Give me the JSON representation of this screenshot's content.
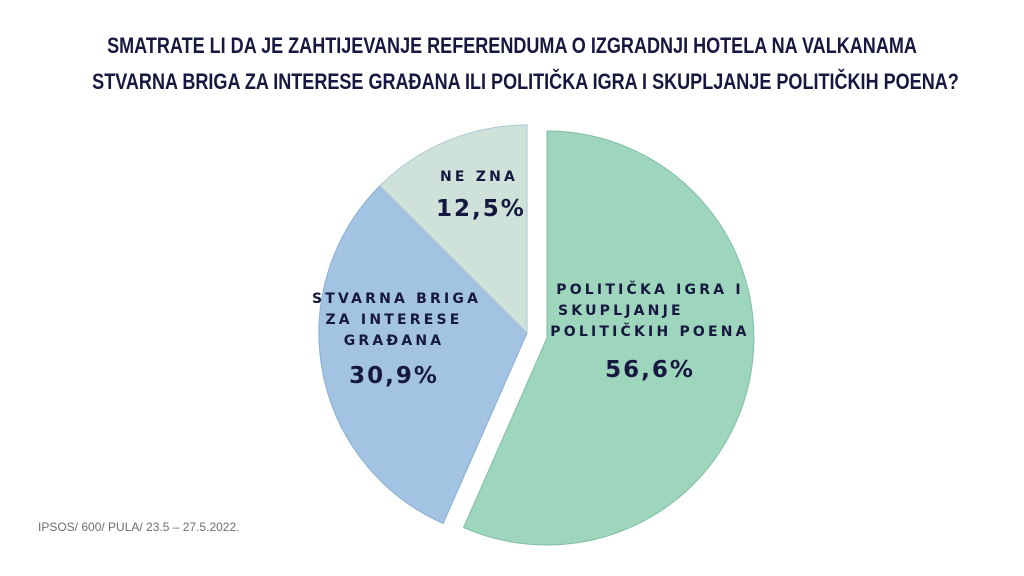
{
  "title": {
    "line1": "SMATRATE LI DA JE ZAHTIJEVANJE REFERENDUMA O IZGRADNJI HOTELA NA VALKANAMA",
    "line2": "STVARNA BRIGA ZA INTERESE GRAĐANA ILI POLITIČKA IGRA I SKUPLJANJE POLITIČKIH POENA?"
  },
  "slices": [
    {
      "label_lines": [
        "POLITIČKA IGRA I",
        "SKUPLJANJE",
        "POLITIČKIH POENA"
      ],
      "value_text": "56,6%",
      "color": "#9dd6bc"
    },
    {
      "label_lines": [
        "STVARNA BRIGA",
        "ZA INTERESE",
        "GRAĐANA"
      ],
      "value_text": "30,9%",
      "color": "#a3c3e2"
    },
    {
      "label_lines": [
        "NE ZNA"
      ],
      "value_text": "12,5%",
      "color": "#cfe2d9"
    }
  ],
  "source": "IPSOS/ 600/ PULA/ 23.5 – 27.5.2022.",
  "chart_data": {
    "type": "pie",
    "title": "SMATRATE LI DA JE ZAHTIJEVANJE REFERENDUMA O IZGRADNJI HOTELA NA VALKANAMA STVARNA BRIGA ZA INTERESE GRAĐANA ILI POLITIČKA IGRA I SKUPLJANJE POLITIČKIH POENA?",
    "categories": [
      "POLITIČKA IGRA I SKUPLJANJE POLITIČKIH POENA",
      "STVARNA BRIGA ZA INTERESE GRAĐANA",
      "NE ZNA"
    ],
    "values": [
      56.6,
      30.9,
      12.5
    ],
    "unit": "%",
    "colors": [
      "#9dd6bc",
      "#a3c3e2",
      "#cfe2d9"
    ],
    "exploded": [
      "POLITIČKA IGRA I SKUPLJANJE POLITIČKIH POENA"
    ],
    "start_angle": "12 o'clock, clockwise",
    "legend": "none (labels inside slices)",
    "note": "IPSOS/ 600/ PULA/ 23.5 – 27.5.2022."
  }
}
